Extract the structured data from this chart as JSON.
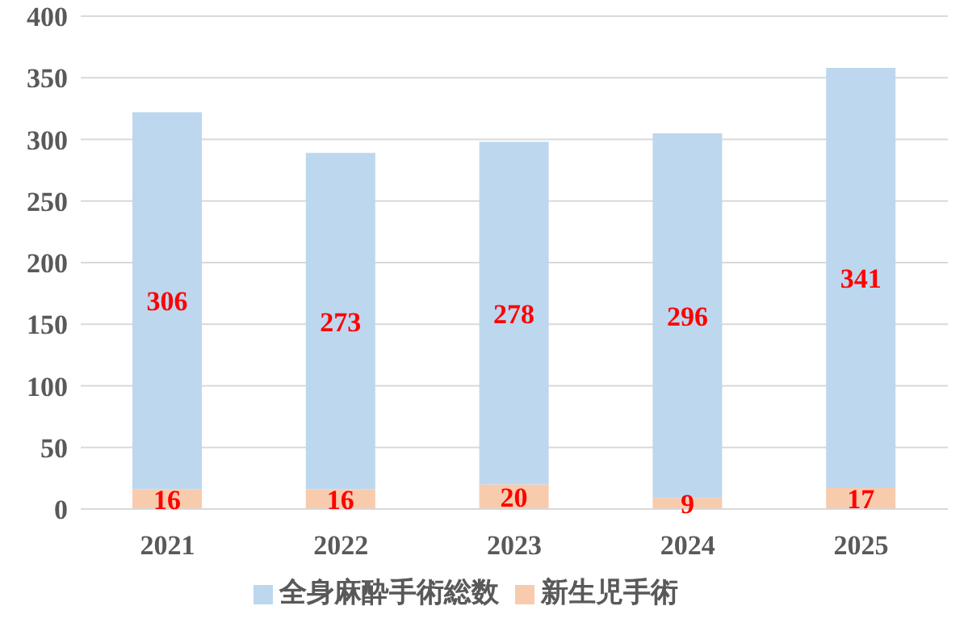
{
  "chart_data": {
    "type": "bar",
    "stacked": true,
    "categories": [
      "2021",
      "2022",
      "2023",
      "2024",
      "2025"
    ],
    "series": [
      {
        "name": "新生児手術",
        "color": "#f8cbad",
        "values": [
          16,
          16,
          20,
          9,
          17
        ]
      },
      {
        "name": "全身麻酔手術総数",
        "color": "#bdd7ee",
        "values": [
          306,
          273,
          278,
          296,
          341
        ]
      }
    ],
    "ylim": [
      0,
      400
    ],
    "yticks": [
      0,
      50,
      100,
      150,
      200,
      250,
      300,
      350,
      400
    ],
    "grid": "y",
    "legend": "bottom",
    "data_labels": true
  }
}
